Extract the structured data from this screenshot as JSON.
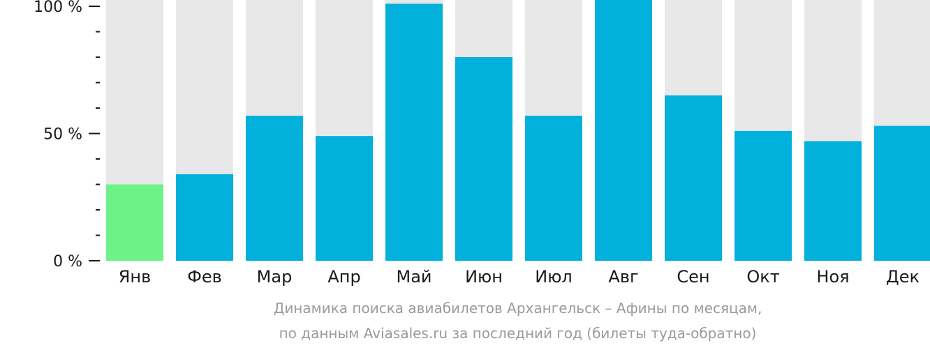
{
  "chart_data": {
    "type": "bar",
    "categories": [
      "Янв",
      "Фев",
      "Мар",
      "Апр",
      "Май",
      "Июн",
      "Июл",
      "Авг",
      "Сен",
      "Окт",
      "Ноя",
      "Дек"
    ],
    "values": [
      30,
      34,
      57,
      49,
      101,
      80,
      57,
      103,
      65,
      51,
      47,
      53
    ],
    "highlight_index": 0,
    "ylim": [
      0,
      100
    ],
    "yticks": [
      {
        "value": 0,
        "label": "0 %"
      },
      {
        "value": 50,
        "label": "50 %"
      },
      {
        "value": 100,
        "label": "100 %"
      }
    ],
    "colors": {
      "bar": "#02b0dc",
      "highlight": "#6cf286",
      "background_bar": "#e8e8e8",
      "axis": "#1a1a1a"
    }
  },
  "caption": {
    "line1": "Динамика поиска авиабилетов Архангельск – Афины по месяцам,",
    "line2": "по данным Aviasales.ru за последний год (билеты туда-обратно)"
  }
}
